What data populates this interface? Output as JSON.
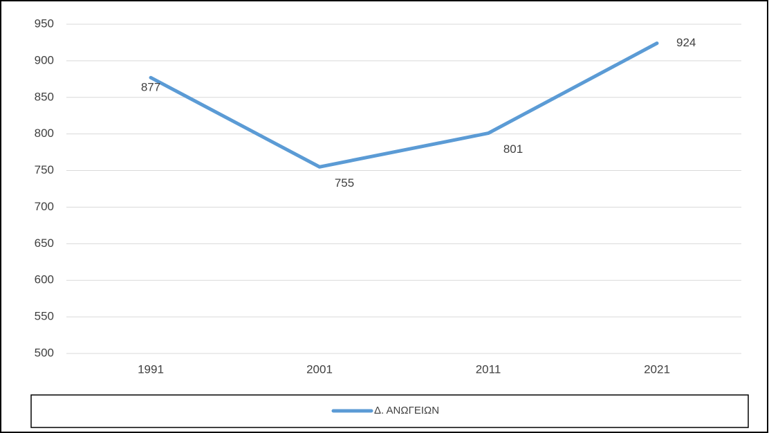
{
  "chart_data": {
    "type": "line",
    "categories": [
      "1991",
      "2001",
      "2011",
      "2021"
    ],
    "series": [
      {
        "name": "Δ. ΑΝΩΓΕΙΩΝ",
        "color": "#5b9bd5",
        "values": [
          877,
          755,
          801,
          924
        ]
      }
    ],
    "ylim": [
      500,
      950
    ],
    "yticks": [
      500,
      550,
      600,
      650,
      700,
      750,
      800,
      850,
      900,
      950
    ],
    "grid": true,
    "data_labels": true,
    "legend": "bottom"
  }
}
